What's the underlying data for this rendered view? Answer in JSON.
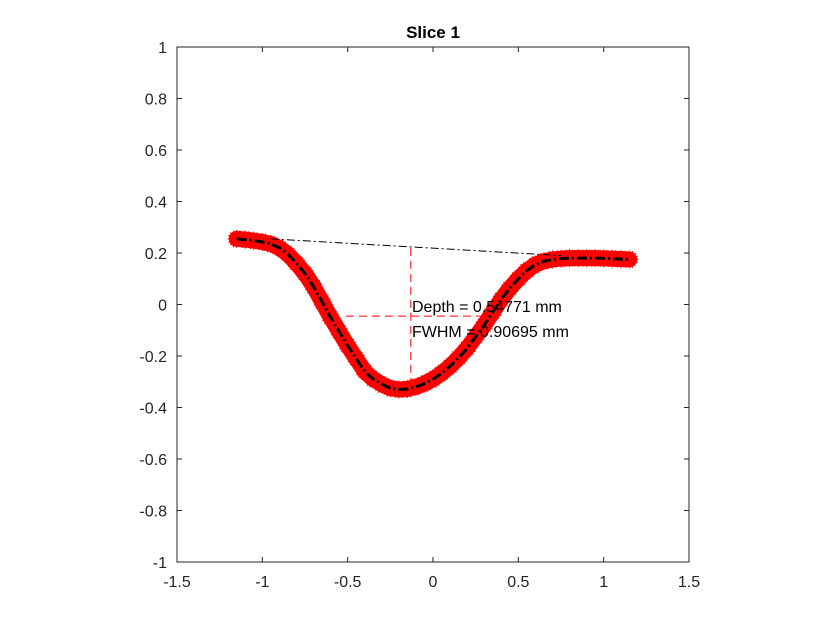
{
  "chart_data": {
    "type": "scatter",
    "title": "Slice 1",
    "xlabel": "",
    "ylabel": "",
    "xlim": [
      -1.5,
      1.5
    ],
    "ylim": [
      -1,
      1
    ],
    "xticks": [
      "-1.5",
      "-1",
      "-0.5",
      "0",
      "0.5",
      "1",
      "1.5"
    ],
    "yticks": [
      "-1",
      "-0.8",
      "-0.6",
      "-0.4",
      "-0.2",
      "0",
      "0.2",
      "0.4",
      "0.6",
      "0.8",
      "1"
    ],
    "grid": false,
    "colors": {
      "data": "#ff0000",
      "fit": "#000000",
      "baseline": "#000000",
      "measure": "#ff0000"
    },
    "data": {
      "marker": "star",
      "x": [
        -1.15,
        -1.1,
        -1.05,
        -1.0,
        -0.95,
        -0.9,
        -0.85,
        -0.8,
        -0.75,
        -0.7,
        -0.65,
        -0.6,
        -0.55,
        -0.5,
        -0.45,
        -0.4,
        -0.35,
        -0.3,
        -0.25,
        -0.2,
        -0.15,
        -0.1,
        -0.05,
        0.0,
        0.05,
        0.1,
        0.15,
        0.2,
        0.25,
        0.3,
        0.35,
        0.4,
        0.45,
        0.5,
        0.55,
        0.6,
        0.65,
        0.7,
        0.75,
        0.8,
        0.85,
        0.9,
        0.95,
        1.0,
        1.05,
        1.1,
        1.15
      ],
      "y": [
        0.255,
        0.252,
        0.248,
        0.243,
        0.235,
        0.22,
        0.195,
        0.16,
        0.12,
        0.07,
        0.01,
        -0.05,
        -0.105,
        -0.16,
        -0.21,
        -0.26,
        -0.29,
        -0.31,
        -0.325,
        -0.33,
        -0.328,
        -0.32,
        -0.307,
        -0.29,
        -0.267,
        -0.24,
        -0.207,
        -0.17,
        -0.125,
        -0.08,
        -0.03,
        0.02,
        0.063,
        0.1,
        0.132,
        0.155,
        0.168,
        0.175,
        0.178,
        0.18,
        0.18,
        0.18,
        0.18,
        0.179,
        0.178,
        0.176,
        0.175
      ]
    },
    "baseline": {
      "x": [
        -0.95,
        0.75
      ],
      "y": [
        0.255,
        0.19
      ]
    },
    "depth_line": {
      "x": [
        -0.13,
        -0.13
      ],
      "y": [
        0.22,
        -0.33
      ]
    },
    "fwhm_line": {
      "x": [
        -0.51,
        0.3
      ],
      "y": [
        -0.045,
        -0.045
      ]
    },
    "annotations": {
      "depth": "Depth = 0.54771 mm",
      "fwhm": "FWHM = 0.90695 mm"
    }
  }
}
